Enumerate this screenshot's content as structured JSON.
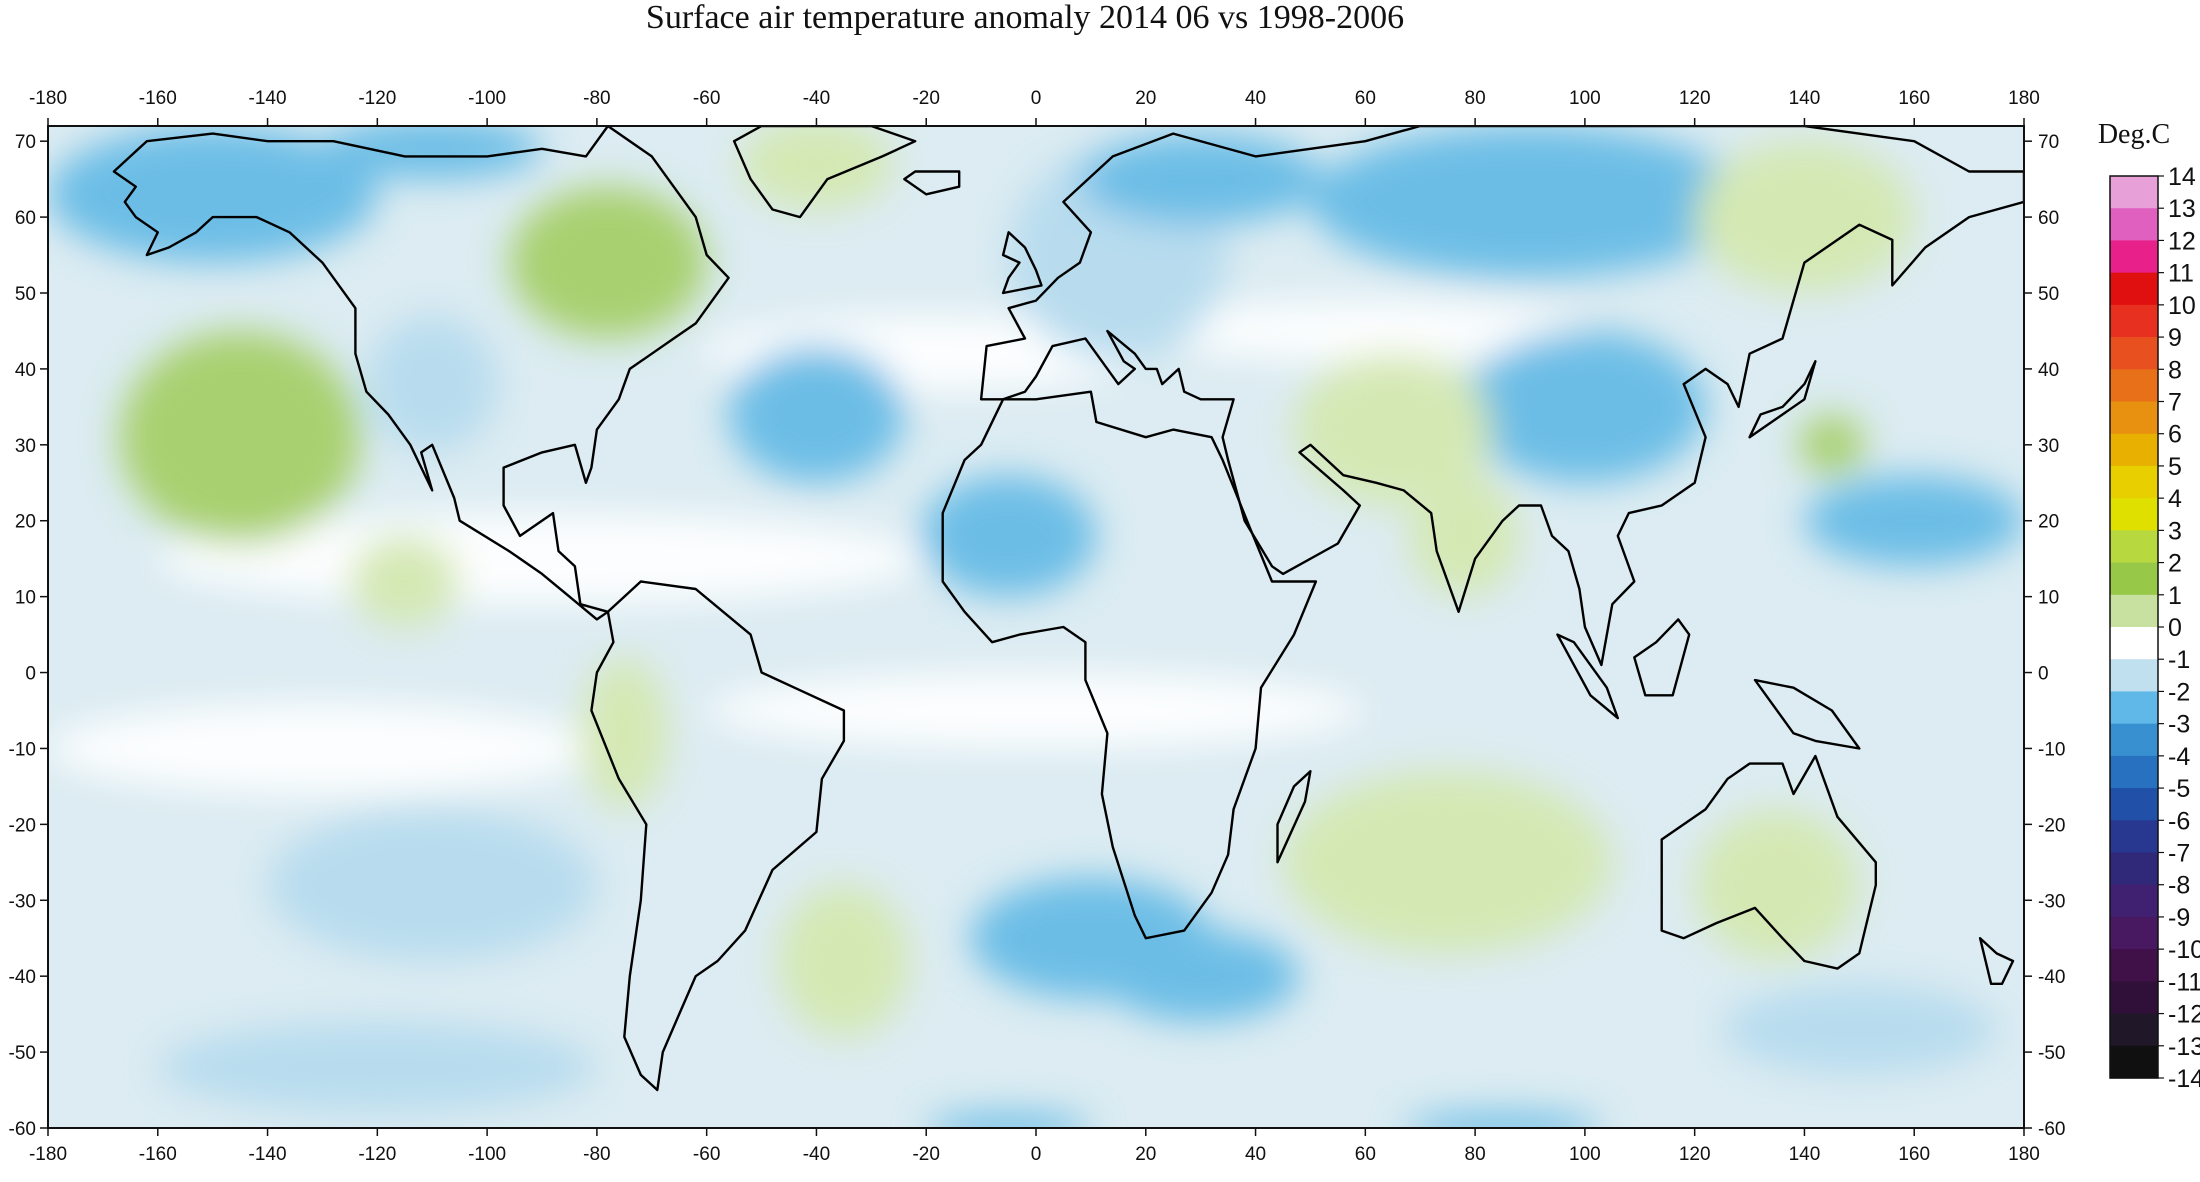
{
  "title": "Surface air temperature anomaly 2014 06 vs 1998-2006",
  "map": {
    "lon_range": [
      -180,
      180
    ],
    "lat_range": [
      -60,
      72
    ],
    "lon_ticks": [
      -180,
      -160,
      -140,
      -120,
      -100,
      -80,
      -60,
      -40,
      -20,
      0,
      20,
      40,
      60,
      80,
      100,
      120,
      140,
      160,
      180
    ],
    "lat_ticks": [
      70,
      60,
      50,
      40,
      30,
      20,
      10,
      0,
      -10,
      -20,
      -30,
      -40,
      -50,
      -60
    ],
    "coastlines": "continental outlines with national borders",
    "anomaly_regions": [
      {
        "name": "NE Pacific warm",
        "lon": -145,
        "lat": 31,
        "rx": 22,
        "ry": 14,
        "v": 2
      },
      {
        "name": "NE Pacific core",
        "lon": -147,
        "lat": 34,
        "rx": 8,
        "ry": 5,
        "v": 2
      },
      {
        "name": "Eastern Canada warm",
        "lon": -78,
        "lat": 54,
        "rx": 18,
        "ry": 10,
        "v": 2
      },
      {
        "name": "Greenland warm",
        "lon": -40,
        "lat": 67,
        "rx": 14,
        "ry": 6,
        "v": 1
      },
      {
        "name": "Alaska cold",
        "lon": -150,
        "lat": 63,
        "rx": 30,
        "ry": 9,
        "v": -2
      },
      {
        "name": "Arctic Canada cold",
        "lon": -110,
        "lat": 69,
        "rx": 20,
        "ry": 4,
        "v": -2
      },
      {
        "name": "Western NA cold",
        "lon": -110,
        "lat": 38,
        "rx": 12,
        "ry": 9,
        "v": -1
      },
      {
        "name": "NW Atlantic cold",
        "lon": -40,
        "lat": 34,
        "rx": 16,
        "ry": 9,
        "v": -2
      },
      {
        "name": "Europe cold",
        "lon": 15,
        "lat": 55,
        "rx": 20,
        "ry": 14,
        "v": -1
      },
      {
        "name": "Scandinavia cold",
        "lon": 30,
        "lat": 65,
        "rx": 22,
        "ry": 6,
        "v": -2
      },
      {
        "name": "North Africa cold",
        "lon": -5,
        "lat": 18,
        "rx": 16,
        "ry": 8,
        "v": -2
      },
      {
        "name": "Siberia cold",
        "lon": 90,
        "lat": 62,
        "rx": 40,
        "ry": 10,
        "v": -2
      },
      {
        "name": "Mongolia cold",
        "lon": 100,
        "lat": 35,
        "rx": 22,
        "ry": 10,
        "v": -2
      },
      {
        "name": "Central Asia warm",
        "lon": 65,
        "lat": 32,
        "rx": 18,
        "ry": 10,
        "v": 1
      },
      {
        "name": "India warm",
        "lon": 78,
        "lat": 18,
        "rx": 10,
        "ry": 8,
        "v": 1
      },
      {
        "name": "NW Pacific cold",
        "lon": 160,
        "lat": 20,
        "rx": 20,
        "ry": 6,
        "v": -2
      },
      {
        "name": "Japan warm",
        "lon": 145,
        "lat": 30,
        "rx": 6,
        "ry": 4,
        "v": 2
      },
      {
        "name": "NE Siberia warm",
        "lon": 140,
        "lat": 60,
        "rx": 20,
        "ry": 10,
        "v": 1
      },
      {
        "name": "East Pacific warm",
        "lon": -115,
        "lat": 12,
        "rx": 10,
        "ry": 6,
        "v": 1
      },
      {
        "name": "Peru warm",
        "lon": -75,
        "lat": -8,
        "rx": 8,
        "ry": 10,
        "v": 1
      },
      {
        "name": "South Pacific cold",
        "lon": -110,
        "lat": -28,
        "rx": 30,
        "ry": 10,
        "v": -1
      },
      {
        "name": "South Atlantic warm",
        "lon": -35,
        "lat": -38,
        "rx": 12,
        "ry": 10,
        "v": 1
      },
      {
        "name": "S Atlantic cold",
        "lon": 10,
        "lat": -35,
        "rx": 22,
        "ry": 8,
        "v": -2
      },
      {
        "name": "SW Indian Ocean cold",
        "lon": 30,
        "lat": -40,
        "rx": 18,
        "ry": 6,
        "v": -2
      },
      {
        "name": "South Indian warm",
        "lon": 75,
        "lat": -25,
        "rx": 30,
        "ry": 12,
        "v": 1
      },
      {
        "name": "Australia warm",
        "lon": 135,
        "lat": -28,
        "rx": 15,
        "ry": 10,
        "v": 1
      },
      {
        "name": "Southern Ocean cold",
        "lon": -120,
        "lat": -52,
        "rx": 40,
        "ry": 6,
        "v": -1
      },
      {
        "name": "SE Pacific cold",
        "lon": 150,
        "lat": -47,
        "rx": 25,
        "ry": 6,
        "v": -1
      },
      {
        "name": "Antarctic rim cold W",
        "lon": -5,
        "lat": -60,
        "rx": 15,
        "ry": 2,
        "v": -2
      },
      {
        "name": "Antarctic rim cold E",
        "lon": 85,
        "lat": -60,
        "rx": 18,
        "ry": 2,
        "v": -2
      }
    ]
  },
  "colorbar": {
    "title": "Deg.C",
    "labels": [
      "14",
      "13",
      "12",
      "11",
      "10",
      "9",
      "8",
      "7",
      "6",
      "5",
      "4",
      "3",
      "2",
      "1",
      "0",
      "-1",
      "-2",
      "-3",
      "-4",
      "-5",
      "-6",
      "-7",
      "-8",
      "-9",
      "-10",
      "-11",
      "-12",
      "-13",
      "-14"
    ],
    "colors": [
      "#e8a0d8",
      "#e060c0",
      "#e8208a",
      "#e01010",
      "#e83020",
      "#e85020",
      "#e87018",
      "#e89010",
      "#e8b000",
      "#e8d000",
      "#e0e000",
      "#b8d840",
      "#98c848",
      "#c8e0a0",
      "#ffffff",
      "#c0e0f0",
      "#60b8e8",
      "#3890d0",
      "#2870c0",
      "#2050a8",
      "#283890",
      "#302878",
      "#402070",
      "#481860",
      "#401048",
      "#301038",
      "#201828",
      "#101010"
    ]
  }
}
